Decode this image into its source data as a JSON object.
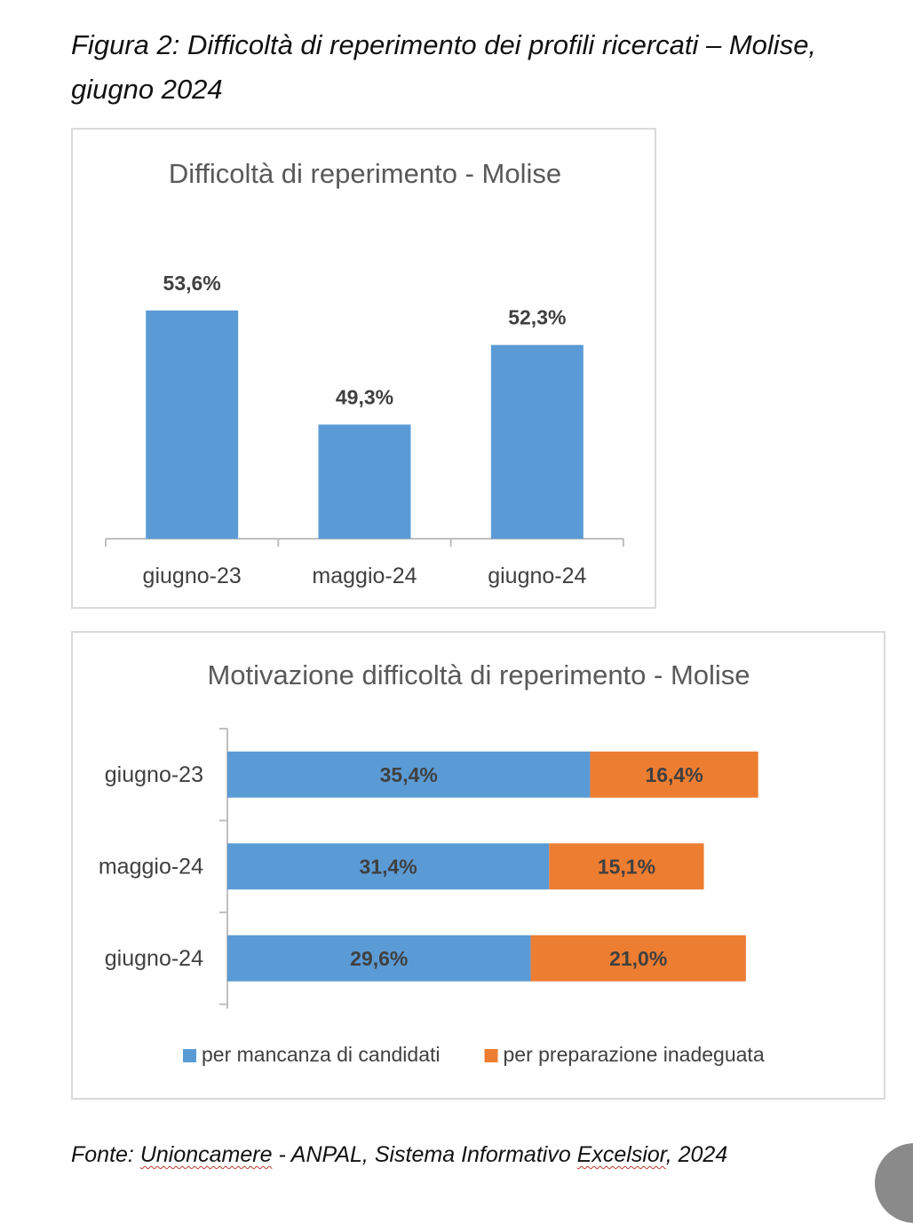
{
  "figure_title": "Figura 2: Difficoltà di reperimento dei profili ricercati – Molise, giugno 2024",
  "source": {
    "prefix": "Fonte: ",
    "org": "Unioncamere",
    "middle": " - ANPAL, Sistema Informativo ",
    "system": "Excelsior",
    "suffix": ", 2024"
  },
  "colors": {
    "blue": "#5b9bd5",
    "orange": "#ed7d31",
    "axis": "#bfbfbf"
  },
  "chart_data": [
    {
      "type": "bar",
      "title": "Difficoltà di reperimento - Molise",
      "categories": [
        "giugno-23",
        "maggio-24",
        "giugno-24"
      ],
      "values": [
        53.6,
        49.3,
        52.3
      ],
      "value_labels": [
        "53,6%",
        "49,3%",
        "52,3%"
      ],
      "ylim": [
        45,
        56
      ],
      "grid": false,
      "legend": "none"
    },
    {
      "type": "bar",
      "orientation": "horizontal",
      "stacked": true,
      "title": "Motivazione difficoltà di reperimento - Molise",
      "categories": [
        "giugno-23",
        "maggio-24",
        "giugno-24"
      ],
      "series": [
        {
          "name": "per mancanza di candidati",
          "values": [
            35.4,
            31.4,
            29.6
          ],
          "labels": [
            "35,4%",
            "31,4%",
            "29,6%"
          ],
          "color": "#5b9bd5"
        },
        {
          "name": "per preparazione inadeguata",
          "values": [
            16.4,
            15.1,
            21.0
          ],
          "labels": [
            "16,4%",
            "15,1%",
            "21,0%"
          ],
          "color": "#ed7d31"
        }
      ],
      "xlim": [
        0,
        52
      ],
      "grid": false,
      "legend": "bottom"
    }
  ]
}
